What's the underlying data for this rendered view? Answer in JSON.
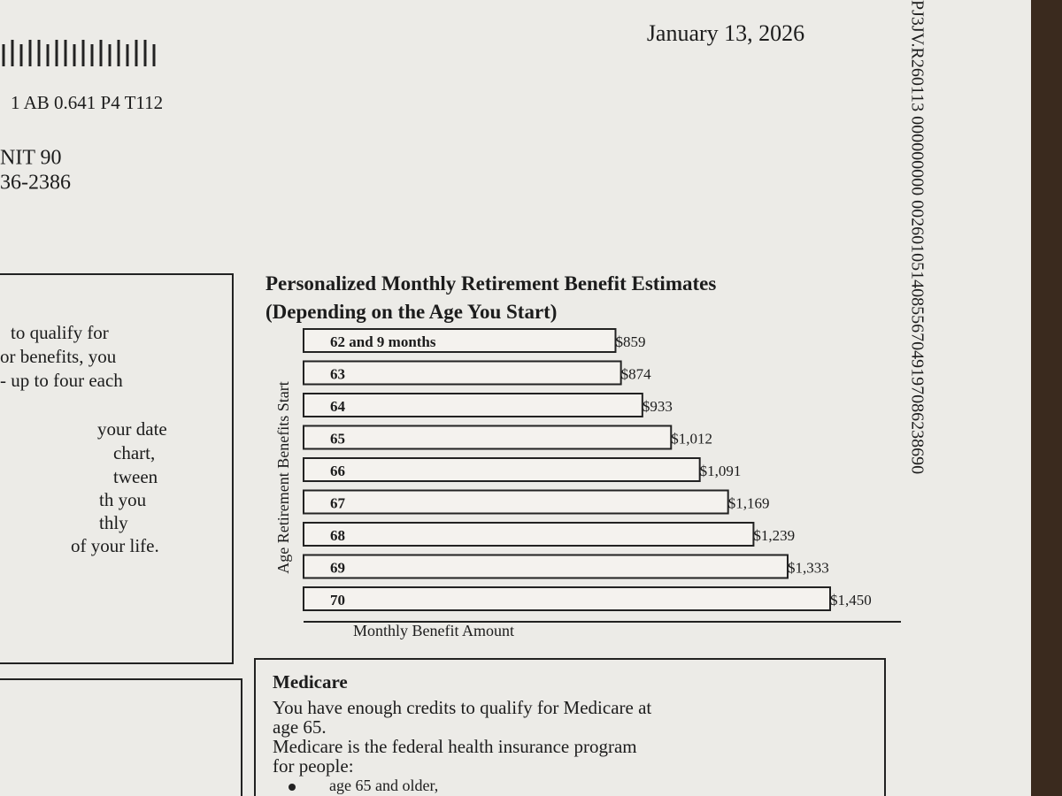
{
  "header": {
    "date": "January 13, 2026",
    "code_line": "1 AB 0.641 P4 T112",
    "address": [
      "NIT 90",
      "36-2386"
    ],
    "side_code": "PJ3JV.R260113 000000000 0026010514085567049197086238690"
  },
  "left_box": {
    "lines": [
      "to qualify for",
      "or benefits, you",
      "- up to four each",
      "your date",
      "chart,",
      "tween",
      "th you",
      "thly",
      "of your life."
    ]
  },
  "chart_data": {
    "type": "bar",
    "orientation": "horizontal",
    "title": "Personalized Monthly Retirement Benefit Estimates (Depending on the Age You Start)",
    "x_label": "Monthly Benefit Amount",
    "y_label": "Age Retirement Benefits Start",
    "categories": [
      "62 and 9 months",
      "63",
      "64",
      "65",
      "66",
      "67",
      "68",
      "69",
      "70"
    ],
    "values": [
      859,
      874,
      933,
      1012,
      1091,
      1169,
      1239,
      1333,
      1450
    ],
    "value_labels": [
      "$859",
      "$874",
      "$933",
      "$1,012",
      "$1,091",
      "$1,169",
      "$1,239",
      "$1,333",
      "$1,450"
    ],
    "color": "#f4f2ee"
  },
  "medicare": {
    "title": "Medicare",
    "lines": [
      "You have enough credits to qualify for Medicare at",
      "age 65.",
      "Medicare is the federal health insurance program",
      "for people:"
    ],
    "bullets": [
      "age 65 and older,"
    ]
  }
}
